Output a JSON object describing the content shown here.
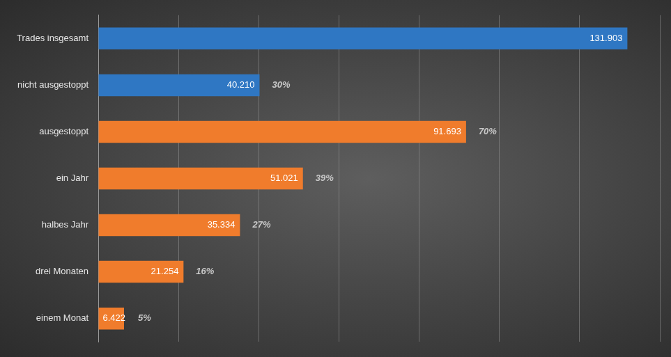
{
  "chart_data": {
    "type": "bar",
    "orientation": "horizontal",
    "categories": [
      "Trades insgesamt",
      "nicht ausgestoppt",
      "ausgestoppt",
      "ein Jahr",
      "halbes Jahr",
      "drei Monaten",
      "einem Monat"
    ],
    "values": [
      131903,
      40210,
      91693,
      51021,
      35334,
      21254,
      6422
    ],
    "value_labels": [
      "131.903",
      "40.210",
      "91.693",
      "51.021",
      "35.334",
      "21.254",
      "6.422"
    ],
    "colors": [
      "#2f77c3",
      "#2f77c3",
      "#f07c2c",
      "#f07c2c",
      "#f07c2c",
      "#f07c2c",
      "#f07c2c"
    ],
    "shares": [
      null,
      30,
      70,
      39,
      27,
      16,
      5
    ],
    "share_labels": [
      null,
      "30%",
      "70%",
      "39%",
      "27%",
      "16%",
      "5%"
    ],
    "xlim": [
      0,
      140000
    ],
    "xticks": [
      0,
      20000,
      40000,
      60000,
      80000,
      100000,
      120000,
      140000
    ],
    "grid": true,
    "data_labels": true,
    "tick_labels": "y"
  }
}
